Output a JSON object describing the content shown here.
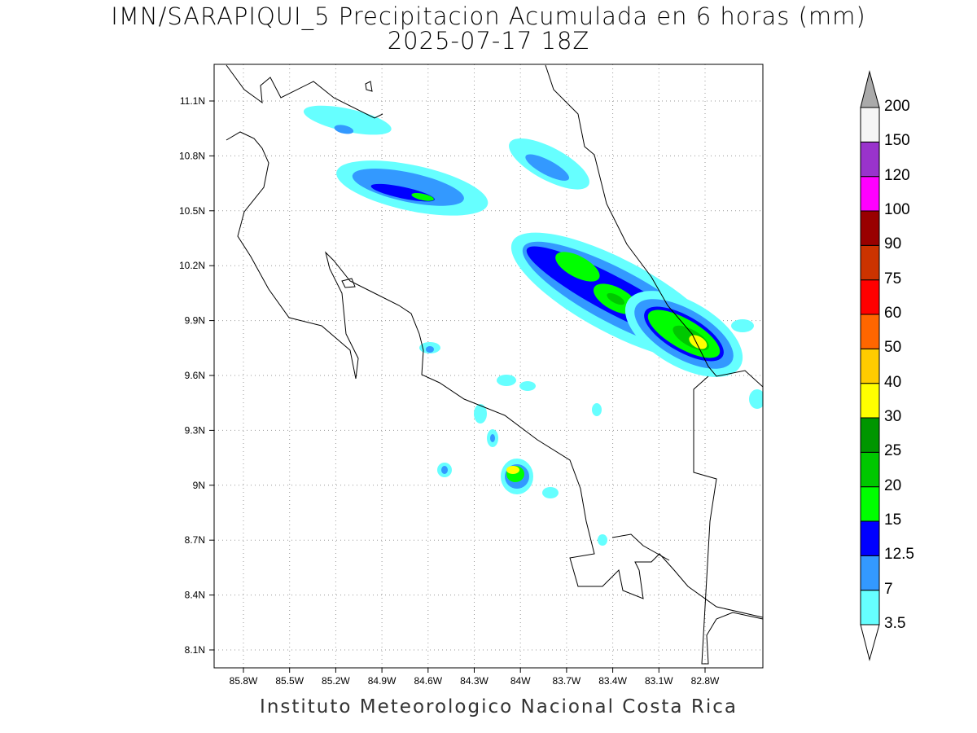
{
  "title": "IMN/SARAPIQUI_5 Precipitacion Acumulada en 6 horas (mm)",
  "subtitle": "2025-07-17 18Z",
  "footer": "Instituto Meteorologico Nacional Costa Rica",
  "lon_ticks": [
    "85.8W",
    "85.5W",
    "85.2W",
    "84.9W",
    "84.6W",
    "84.3W",
    "84W",
    "83.7W",
    "83.4W",
    "83.1W",
    "82.8W"
  ],
  "lat_ticks": [
    "11.1N",
    "10.8N",
    "10.5N",
    "10.2N",
    "9.9N",
    "9.6N",
    "9.3N",
    "9N",
    "8.7N",
    "8.4N",
    "8.1N"
  ],
  "colorbar": {
    "labels": [
      "3.5",
      "7",
      "12.5",
      "15",
      "20",
      "25",
      "30",
      "40",
      "50",
      "60",
      "75",
      "90",
      "100",
      "120",
      "150",
      "200"
    ],
    "colors": [
      "#66ffff",
      "#3399ff",
      "#0000ff",
      "#00ff00",
      "#00c800",
      "#009600",
      "#ffff00",
      "#ffcc00",
      "#ff6600",
      "#ff0000",
      "#cc3300",
      "#990000",
      "#ff00ff",
      "#9933cc",
      "#f5f5f5"
    ],
    "over_color": "#aaaaaa",
    "under_color": "#ffffff"
  }
}
